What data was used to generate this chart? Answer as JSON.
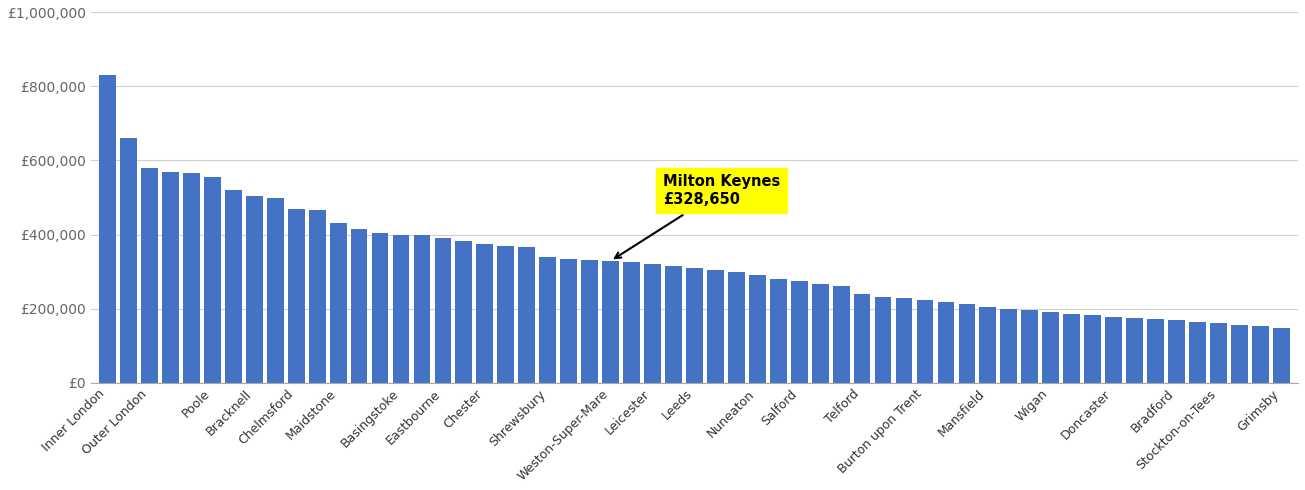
{
  "categories_labeled": [
    "Inner London",
    "Outer London",
    "Poole",
    "Bracknell",
    "Chelmsford",
    "Maidstone",
    "Basingstoke",
    "Eastbourne",
    "Chester",
    "Shrewsbury",
    "Weston-Super-Mare",
    "Leicester",
    "Leeds",
    "Nuneaton",
    "Salford",
    "Telford",
    "Burton upon Trent",
    "Mansfield",
    "Wigan",
    "Doncaster",
    "Bradford",
    "Stockton-on-Tees",
    "Grimsby"
  ],
  "label_bar_indices": [
    0,
    2,
    5,
    7,
    9,
    11,
    14,
    16,
    18,
    21,
    24,
    26,
    28,
    31,
    33,
    36,
    39,
    42,
    45,
    48,
    51,
    53,
    56
  ],
  "all_values": [
    830000,
    660000,
    580000,
    570000,
    565000,
    555000,
    520000,
    505000,
    500000,
    470000,
    465000,
    430000,
    415000,
    405000,
    400000,
    398000,
    390000,
    382000,
    375000,
    370000,
    365000,
    340000,
    335000,
    330000,
    328650,
    325000,
    320000,
    315000,
    310000,
    305000,
    300000,
    290000,
    280000,
    275000,
    265000,
    260000,
    240000,
    232000,
    228000,
    222000,
    218000,
    213000,
    205000,
    200000,
    195000,
    190000,
    185000,
    182000,
    178000,
    175000,
    172000,
    168000,
    163000,
    160000,
    156000,
    152000,
    148000
  ],
  "mk_bar_index": 24,
  "bar_color": "#4472C4",
  "annotation_text": "Milton Keynes\n£328,650",
  "annotation_bg": "#FFFF00",
  "ylim": [
    0,
    1000000
  ],
  "yticks": [
    0,
    200000,
    400000,
    600000,
    800000,
    1000000
  ],
  "ytick_labels": [
    "£0",
    "£200,000",
    "£400,000",
    "£600,000",
    "£800,000",
    "£1,000,000"
  ],
  "grid_color": "#d0d0d0",
  "background_color": "#ffffff"
}
